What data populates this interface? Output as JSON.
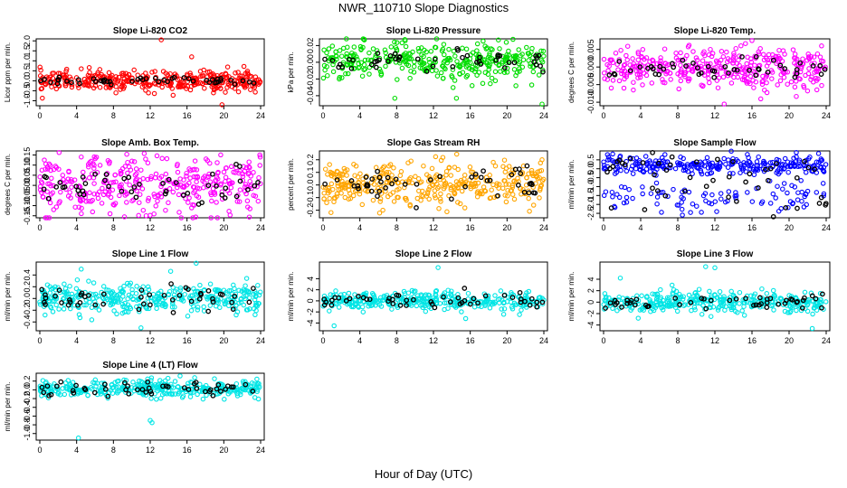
{
  "title": "NWR_110710  Slope Diagnostics",
  "xlabel": "Hour of Day (UTC)",
  "chart_data": [
    {
      "type": "scatter",
      "title": "Slope Li-820 CO2",
      "ylabel": "Licor ppm per min.",
      "color": "#ff0000",
      "xlim": [
        0,
        24
      ],
      "xticks": [
        0,
        4,
        8,
        12,
        16,
        20,
        24
      ],
      "ylim": [
        -1.25,
        2.1
      ],
      "yticks": [
        -1.0,
        -0.5,
        0.0,
        0.5,
        1.0,
        1.5,
        2.0
      ],
      "ytick_labels": [
        "-1.0",
        "-0.5",
        "0.0",
        "0.5",
        "1.0",
        "1.5",
        "2.0"
      ],
      "center": 0.0,
      "spread": 0.25,
      "black_spread": 0.08,
      "outliers": [
        [
          13.2,
          2.05
        ],
        [
          19.8,
          -1.2
        ],
        [
          16.5,
          1.2
        ],
        [
          4.5,
          0.6
        ]
      ]
    },
    {
      "type": "scatter",
      "title": "Slope Li-820 Pressure",
      "ylabel": "kPa per min.",
      "color": "#00dd00",
      "xlim": [
        0,
        24
      ],
      "xticks": [
        0,
        4,
        8,
        12,
        16,
        20,
        24
      ],
      "ylim": [
        -0.052,
        0.028
      ],
      "yticks": [
        -0.04,
        -0.02,
        0.0,
        0.02
      ],
      "ytick_labels": [
        "-0.04",
        "-0.02",
        "0.00",
        "0.02"
      ],
      "center": 0.001,
      "spread": 0.011,
      "black_spread": 0.006,
      "outliers": [
        [
          7.8,
          -0.043
        ],
        [
          14.5,
          -0.043
        ],
        [
          23.8,
          -0.05
        ],
        [
          16.2,
          -0.028
        ]
      ]
    },
    {
      "type": "scatter",
      "title": "Slope Li-820 Temp.",
      "ylabel": "degrees C per min.",
      "color": "#ff00ff",
      "xlim": [
        0,
        24
      ],
      "xticks": [
        0,
        4,
        8,
        12,
        16,
        20,
        24
      ],
      "ylim": [
        -0.011,
        0.008
      ],
      "yticks": [
        -0.01,
        -0.005,
        0.0,
        0.005
      ],
      "ytick_labels": [
        "-0.010",
        "-0.005",
        "0.000",
        "0.005"
      ],
      "center": -0.0005,
      "spread": 0.003,
      "black_spread": 0.0015,
      "outliers": [
        [
          16.0,
          0.0075
        ],
        [
          23.5,
          0.006
        ],
        [
          13.0,
          -0.0105
        ],
        [
          2.2,
          -0.006
        ]
      ]
    },
    {
      "type": "scatter",
      "title": "Slope Amb. Box Temp.",
      "ylabel": "degrees C per min.",
      "color": "#ff00ff",
      "xlim": [
        0,
        24
      ],
      "xticks": [
        0,
        4,
        8,
        12,
        16,
        20,
        24
      ],
      "ylim": [
        -0.16,
        0.17
      ],
      "yticks": [
        -0.15,
        -0.1,
        -0.05,
        0.0,
        0.05,
        0.1,
        0.15
      ],
      "ytick_labels": [
        "-0.15",
        "-0.10",
        "-0.05",
        "0.00",
        "0.05",
        "0.10",
        "0.15"
      ],
      "center": 0.0,
      "spread": 0.07,
      "black_spread": 0.04,
      "outliers": [
        [
          9.2,
          -0.155
        ],
        [
          11.5,
          0.13
        ],
        [
          4.5,
          0.14
        ]
      ]
    },
    {
      "type": "scatter",
      "title": "Slope Gas Stream RH",
      "ylabel": "percent per min.",
      "color": "#ffa500",
      "xlim": [
        0,
        24
      ],
      "xticks": [
        0,
        4,
        8,
        12,
        16,
        20,
        24
      ],
      "ylim": [
        -0.26,
        0.27
      ],
      "yticks": [
        -0.2,
        -0.1,
        0.0,
        0.1,
        0.2
      ],
      "ytick_labels": [
        "-0.2",
        "-0.1",
        "0.0",
        "0.1",
        "0.2"
      ],
      "center": 0.0,
      "spread": 0.09,
      "black_spread": 0.06,
      "outliers": [
        [
          23.8,
          0.2
        ],
        [
          6.5,
          -0.2
        ],
        [
          18.5,
          0.18
        ]
      ]
    },
    {
      "type": "scatter",
      "title": "Slope Sample Flow",
      "ylabel": "ml/min per min.",
      "color": "#0000ff",
      "xlim": [
        0,
        24
      ],
      "xticks": [
        0,
        4,
        8,
        12,
        16,
        20,
        24
      ],
      "ylim": [
        -2.75,
        1.0
      ],
      "yticks": [
        -2.5,
        -2.0,
        -1.5,
        -1.0,
        -0.5,
        0.0,
        0.5
      ],
      "ytick_labels": [
        "-2.5",
        "-2.0",
        "-1.5",
        "-1.0",
        "-0.5",
        "0.0",
        "0.5"
      ],
      "center": 0.2,
      "spread": 0.25,
      "black_spread": 0.4,
      "lower_band": [
        -1.6,
        0.45
      ],
      "outliers": [
        [
          8.5,
          -2.6
        ],
        [
          15.5,
          0.8
        ],
        [
          12.2,
          -2.4
        ]
      ]
    },
    {
      "type": "scatter",
      "title": "Slope Line 1 Flow",
      "ylabel": "ml/min per min.",
      "color": "#00e5e5",
      "xlim": [
        0,
        24
      ],
      "xticks": [
        0,
        4,
        8,
        12,
        16,
        20,
        24
      ],
      "ylim": [
        -0.55,
        0.62
      ],
      "yticks": [
        -0.4,
        -0.2,
        0.0,
        0.2,
        0.4
      ],
      "ytick_labels": [
        "-0.4",
        "-0.2",
        "0.0",
        "0.2",
        "0.4"
      ],
      "center": 0.0,
      "spread": 0.13,
      "black_spread": 0.1,
      "outliers": [
        [
          17.0,
          0.6
        ],
        [
          4.5,
          0.5
        ],
        [
          11.0,
          -0.5
        ]
      ]
    },
    {
      "type": "scatter",
      "title": "Slope Line 2 Flow",
      "ylabel": "ml/min per min.",
      "color": "#00e5e5",
      "xlim": [
        0,
        24
      ],
      "xticks": [
        0,
        4,
        8,
        12,
        16,
        20,
        24
      ],
      "ylim": [
        -5.4,
        7.0
      ],
      "yticks": [
        -4,
        -2,
        0,
        2,
        4
      ],
      "ytick_labels": [
        "-4",
        "-2",
        "0",
        "2",
        "4"
      ],
      "center": 0.0,
      "spread": 0.8,
      "black_spread": 0.6,
      "outliers": [
        [
          12.5,
          6.0
        ],
        [
          1.2,
          -4.5
        ],
        [
          15.5,
          -3.2
        ]
      ]
    },
    {
      "type": "scatter",
      "title": "Slope Line 3 Flow",
      "ylabel": "ml/min per min.",
      "color": "#00e5e5",
      "xlim": [
        0,
        24
      ],
      "xticks": [
        0,
        4,
        8,
        12,
        16,
        20,
        24
      ],
      "ylim": [
        -5.0,
        7.0
      ],
      "yticks": [
        -4,
        -2,
        0,
        2,
        4
      ],
      "ytick_labels": [
        "-4",
        "-2",
        "0",
        "2",
        "4"
      ],
      "center": 0.0,
      "spread": 0.9,
      "black_spread": 0.7,
      "outliers": [
        [
          11.0,
          6.2
        ],
        [
          12.0,
          6.0
        ],
        [
          1.8,
          4.2
        ],
        [
          22.5,
          -4.6
        ]
      ]
    },
    {
      "type": "scatter",
      "title": "Slope Line 4 (LT) Flow",
      "ylabel": "ml/min per min.",
      "color": "#00e5e5",
      "xlim": [
        0,
        24
      ],
      "xticks": [
        0,
        4,
        8,
        12,
        16,
        20,
        24
      ],
      "ylim": [
        -1.15,
        0.38
      ],
      "yticks": [
        -1.0,
        -0.8,
        -0.6,
        -0.4,
        -0.2,
        0.0,
        0.2
      ],
      "ytick_labels": [
        "-1.0",
        "-0.8",
        "-0.6",
        "-0.4",
        "-0.2",
        "0.0",
        "0.2"
      ],
      "center": 0.02,
      "spread": 0.1,
      "black_spread": 0.08,
      "outliers": [
        [
          4.2,
          -1.1
        ],
        [
          12.0,
          -0.7
        ],
        [
          12.2,
          -0.75
        ]
      ]
    }
  ]
}
